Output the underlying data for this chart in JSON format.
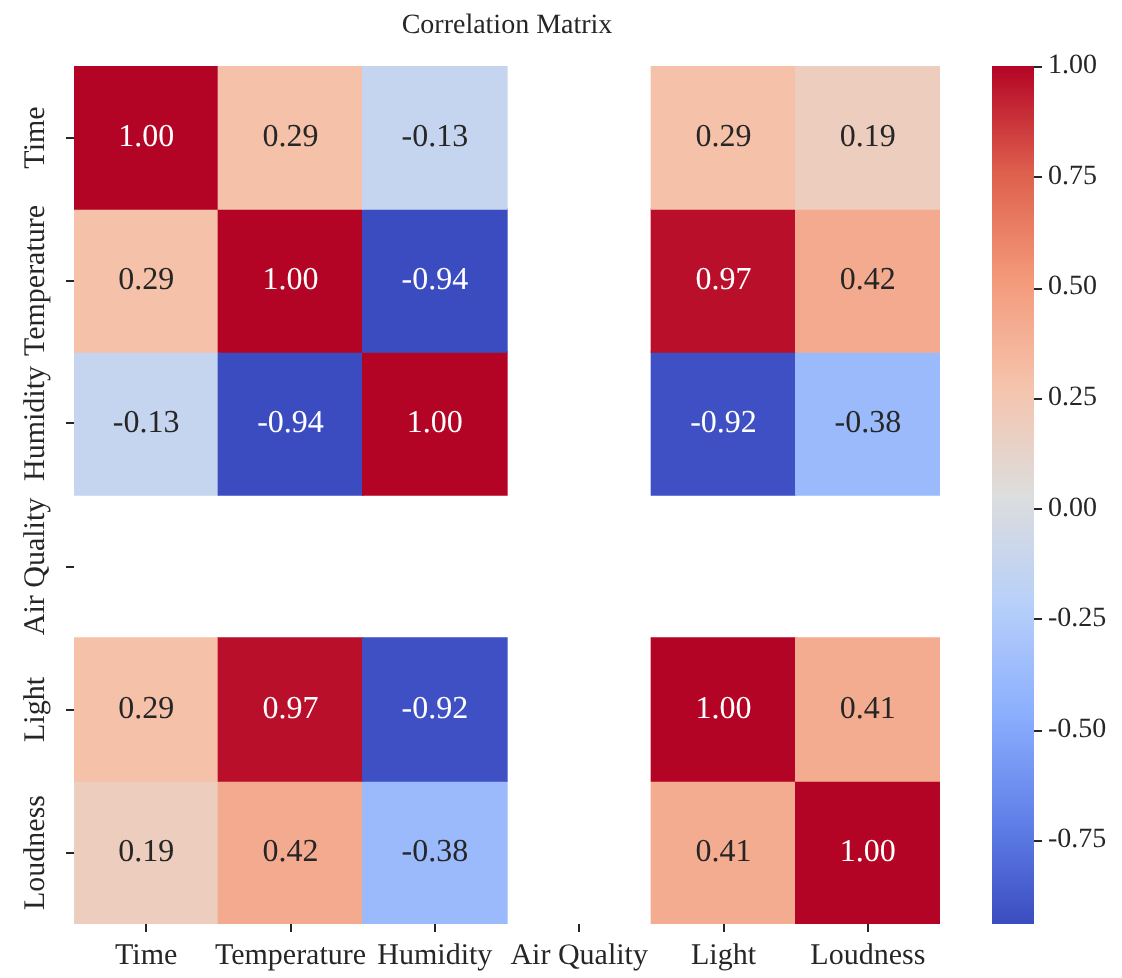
{
  "chart_data": {
    "type": "heatmap",
    "title": "Correlation Matrix",
    "categories": [
      "Time",
      "Temperature",
      "Humidity",
      "Air Quality",
      "Light",
      "Loudness"
    ],
    "y_categories": [
      "Time",
      "Temperature",
      "Humidity",
      "Air Quality",
      "Light",
      "Loudness"
    ],
    "cells": [
      [
        1.0,
        0.29,
        -0.13,
        null,
        0.29,
        0.19
      ],
      [
        0.29,
        1.0,
        -0.94,
        null,
        0.97,
        0.42
      ],
      [
        -0.13,
        -0.94,
        1.0,
        null,
        -0.92,
        -0.38
      ],
      [
        null,
        null,
        null,
        null,
        null,
        null
      ],
      [
        0.29,
        0.97,
        -0.92,
        null,
        1.0,
        0.41
      ],
      [
        0.19,
        0.42,
        -0.38,
        null,
        0.41,
        1.0
      ]
    ],
    "cell_labels": [
      [
        "1.00",
        "0.29",
        "-0.13",
        null,
        "0.29",
        "0.19"
      ],
      [
        "0.29",
        "1.00",
        "-0.94",
        null,
        "0.97",
        "0.42"
      ],
      [
        "-0.13",
        "-0.94",
        "1.00",
        null,
        "-0.92",
        "-0.38"
      ],
      [
        null,
        null,
        null,
        null,
        null,
        null
      ],
      [
        "0.29",
        "0.97",
        "-0.92",
        null,
        "1.00",
        "0.41"
      ],
      [
        "0.19",
        "0.42",
        "-0.38",
        null,
        "0.41",
        "1.00"
      ]
    ],
    "data_labels": true,
    "clim": [
      -0.94,
      1
    ],
    "cticks": [
      -0.75,
      {
        "value": -0.5,
        "label": "-0.50"
      },
      -0.25,
      {
        "value": 0,
        "label": "0.00"
      },
      0.25,
      {
        "value": 0.5,
        "label": "0.50"
      },
      0.75,
      {
        "value": 1,
        "label": "1.00"
      }
    ]
  }
}
